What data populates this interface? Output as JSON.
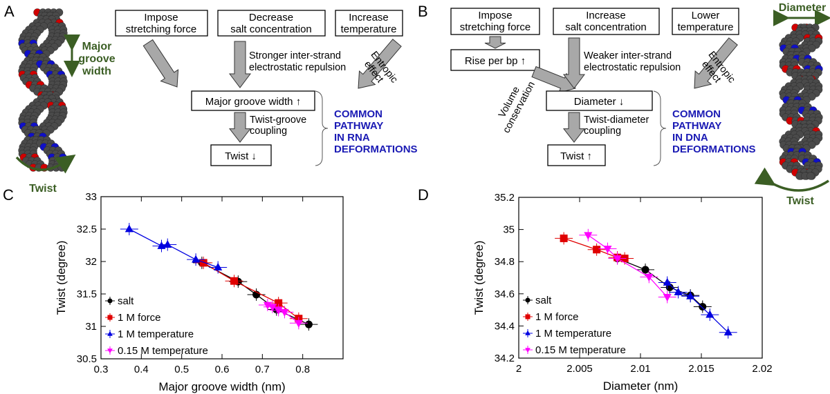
{
  "panels": {
    "a": "A",
    "b": "B",
    "c": "C",
    "d": "D"
  },
  "diagram_a": {
    "box_force": [
      "Impose",
      "stretching force"
    ],
    "box_salt": [
      "Decrease",
      "salt concentration"
    ],
    "box_temp": [
      "Increase",
      "temperature"
    ],
    "note_salt": [
      "Stronger inter-strand",
      "electrostatic repulsion"
    ],
    "note_temp": [
      "Entropic",
      "effect"
    ],
    "box_groove": "Major groove width ↑",
    "note_coupling": [
      "Twist-groove",
      "coupling"
    ],
    "box_twist": "Twist ↓",
    "pathway": [
      "COMMON",
      "PATHWAY",
      "IN RNA",
      "DEFORMATIONS"
    ],
    "label_groove": [
      "Major",
      "groove",
      "width"
    ],
    "label_twist": "Twist"
  },
  "diagram_b": {
    "box_force": [
      "Impose",
      "stretching force"
    ],
    "box_salt": [
      "Increase",
      "salt concentration"
    ],
    "box_temp": [
      "Lower",
      "temperature"
    ],
    "box_rise": "Rise per bp ↑",
    "note_volume": [
      "Volume",
      "conservation"
    ],
    "note_salt": [
      "Weaker inter-strand",
      "electrostatic repulsion"
    ],
    "note_temp": [
      "Entropic",
      "effect"
    ],
    "box_diameter": "Diameter ↓",
    "note_coupling": [
      "Twist-diameter",
      "coupling"
    ],
    "box_twist": "Twist ↑",
    "pathway": [
      "COMMON",
      "PATHWAY",
      "IN DNA",
      "DEFORMATIONS"
    ],
    "label_diameter": "Diameter",
    "label_twist": "Twist"
  },
  "colors": {
    "salt": "#000000",
    "force": "#e00000",
    "temp1M": "#0000e0",
    "temp015M": "#ff00ff",
    "annotation_green": "#3b5e24",
    "pathway_blue": "#1a1ab4",
    "arrow_gray": "#a8a8a8"
  },
  "chart_data": [
    {
      "type": "scatter",
      "panel": "C",
      "xlabel": "Major groove width (nm)",
      "ylabel": "Twist (degree)",
      "xlim": [
        0.3,
        0.9
      ],
      "ylim": [
        30.5,
        33
      ],
      "xticks": [
        "0.3",
        "0.4",
        "0.5",
        "0.6",
        "0.7",
        "0.8"
      ],
      "xtick_values": [
        0.3,
        0.4,
        0.5,
        0.6,
        0.7,
        0.8
      ],
      "yticks": [
        "30.5",
        "31",
        "31.5",
        "32",
        "32.5",
        "33"
      ],
      "ytick_values": [
        30.5,
        31,
        31.5,
        32,
        32.5,
        33
      ],
      "legend_position": "bottom-left",
      "series": [
        {
          "name": "salt",
          "marker": "circle",
          "color": "#000000",
          "x": [
            0.55,
            0.64,
            0.685,
            0.735,
            0.815
          ],
          "y": [
            31.98,
            31.69,
            31.49,
            31.26,
            31.03
          ]
        },
        {
          "name": "1 M force",
          "marker": "square",
          "color": "#e00000",
          "x": [
            0.554,
            0.63,
            0.74,
            0.79
          ],
          "y": [
            31.98,
            31.7,
            31.36,
            31.12
          ]
        },
        {
          "name": "1 M temperature",
          "marker": "triangle-up",
          "color": "#0000e0",
          "x": [
            0.37,
            0.45,
            0.465,
            0.535,
            0.59
          ],
          "y": [
            32.5,
            32.24,
            32.26,
            32.03,
            31.91
          ]
        },
        {
          "name": "0.15 M temperature",
          "marker": "triangle-down",
          "color": "#ff00ff",
          "x": [
            0.713,
            0.725,
            0.74,
            0.755,
            0.79
          ],
          "y": [
            31.33,
            31.3,
            31.25,
            31.22,
            31.05
          ]
        }
      ]
    },
    {
      "type": "scatter",
      "panel": "D",
      "xlabel": "Diameter (nm)",
      "ylabel": "Twist (degree)",
      "xlim": [
        2,
        2.02
      ],
      "ylim": [
        34.2,
        35.2
      ],
      "xticks": [
        "2",
        "2.005",
        "2.01",
        "2.015",
        "2.02"
      ],
      "xtick_values": [
        2,
        2.005,
        2.01,
        2.015,
        2.02
      ],
      "yticks": [
        "34.2",
        "34.4",
        "34.6",
        "34.8",
        "35",
        "35.2"
      ],
      "ytick_values": [
        34.2,
        34.4,
        34.6,
        34.8,
        35,
        35.2
      ],
      "legend_position": "bottom-left",
      "series": [
        {
          "name": "salt",
          "marker": "circle",
          "color": "#000000",
          "x": [
            2.0081,
            2.0104,
            2.0124,
            2.0141,
            2.0151
          ],
          "y": [
            34.82,
            34.75,
            34.64,
            34.59,
            34.52
          ]
        },
        {
          "name": "1 M force",
          "marker": "square",
          "color": "#e00000",
          "x": [
            2.0037,
            2.0064,
            2.0081,
            2.0087
          ],
          "y": [
            34.945,
            34.875,
            34.826,
            34.82
          ]
        },
        {
          "name": "1 M temperature",
          "marker": "triangle-up",
          "color": "#0000e0",
          "x": [
            2.0122,
            2.0131,
            2.0141,
            2.0157,
            2.0172
          ],
          "y": [
            34.67,
            34.61,
            34.585,
            34.47,
            34.36
          ]
        },
        {
          "name": "0.15 M temperature",
          "marker": "triangle-down",
          "color": "#ff00ff",
          "x": [
            2.0057,
            2.0073,
            2.0081,
            2.0107,
            2.0122
          ],
          "y": [
            34.965,
            34.88,
            34.82,
            34.705,
            34.58
          ]
        }
      ]
    }
  ]
}
